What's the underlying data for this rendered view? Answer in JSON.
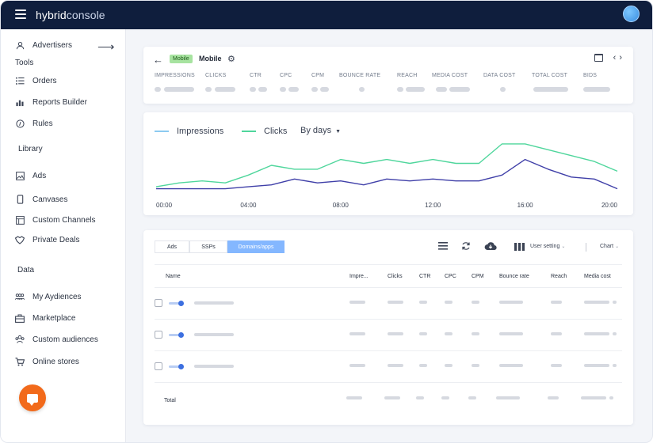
{
  "app": {
    "brand_part1": "hybrid",
    "brand_part2": "console"
  },
  "sidebar": {
    "advertisers": "Advertisers",
    "tools_heading": "Tools",
    "tools": [
      {
        "label": "Orders",
        "icon": "list-icon"
      },
      {
        "label": "Reports Builder",
        "icon": "bar-chart-icon"
      },
      {
        "label": "Rules",
        "icon": "rules-icon"
      }
    ],
    "library_heading": "Library",
    "library": [
      {
        "label": "Ads",
        "icon": "image-icon"
      },
      {
        "label": "Canvases",
        "icon": "phone-icon"
      },
      {
        "label": "Custom Channels",
        "icon": "channels-icon"
      },
      {
        "label": "Private Deals",
        "icon": "handshake-icon"
      }
    ],
    "data_heading": "Data",
    "data": [
      {
        "label": "My Aydiences",
        "icon": "people-icon"
      },
      {
        "label": "Marketplace",
        "icon": "briefcase-icon"
      },
      {
        "label": "Custom audiences",
        "icon": "custom-audience-icon"
      },
      {
        "label": "Online stores",
        "icon": "cart-icon"
      }
    ]
  },
  "stats": {
    "badge": "Mobile",
    "title": "Mobile",
    "metrics": [
      "IMPRESSIONS",
      "CLICKS",
      "CTR",
      "CPC",
      "CPM",
      "BOUNCE RATE",
      "REACH",
      "MEDIA COST",
      "DATA COST",
      "TOTAL COST",
      "BIDS"
    ]
  },
  "chart": {
    "legend_impressions": "Impressions",
    "legend_clicks": "Clicks",
    "period": "By days",
    "color_impressions": "#8ccaf0",
    "color_clicks": "#4fd69c",
    "x_ticks": [
      "00:00",
      "04:00",
      "08:00",
      "12:00",
      "16:00",
      "20:00"
    ]
  },
  "chart_data": {
    "type": "line",
    "x": [
      "00:00",
      "01:00",
      "02:00",
      "03:00",
      "04:00",
      "05:00",
      "06:00",
      "07:00",
      "08:00",
      "09:00",
      "10:00",
      "11:00",
      "12:00",
      "13:00",
      "14:00",
      "15:00",
      "16:00",
      "17:00",
      "18:00",
      "19:00",
      "20:00"
    ],
    "series": [
      {
        "name": "Impressions",
        "color": "#3f3fa8",
        "values": [
          3,
          3,
          3,
          3,
          4,
          5,
          8,
          6,
          7,
          5,
          8,
          7,
          8,
          7,
          7,
          10,
          18,
          13,
          9,
          8,
          3
        ]
      },
      {
        "name": "Clicks",
        "color": "#4fd69c",
        "values": [
          4,
          6,
          7,
          6,
          10,
          15,
          13,
          13,
          18,
          16,
          18,
          16,
          18,
          16,
          16,
          26,
          26,
          23,
          20,
          17,
          12
        ]
      }
    ],
    "ylim": [
      0,
      30
    ]
  },
  "table": {
    "tabs": [
      "Ads",
      "SSPs",
      "Domains/apps"
    ],
    "active_tab": 2,
    "user_setting": "User setting",
    "chart_toggle": "Chart",
    "columns": [
      "Name",
      "Impre...",
      "Clicks",
      "CTR",
      "CPC",
      "CPM",
      "Bounce rate",
      "Reach",
      "Media cost"
    ],
    "total_label": "Total"
  }
}
